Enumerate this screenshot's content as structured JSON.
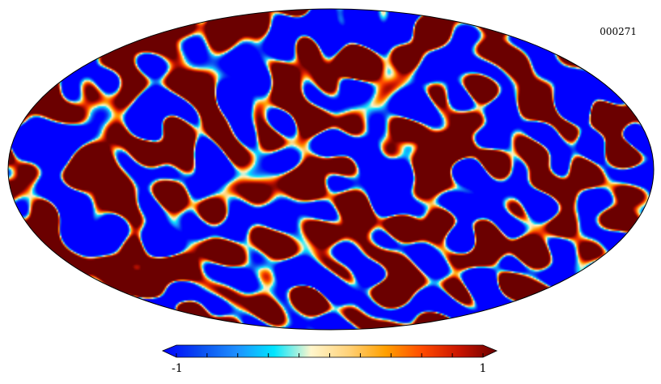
{
  "map": {
    "id_label": "000271",
    "projection": "mollweide",
    "colormap": [
      "#0000ff",
      "#0a4cf0",
      "#1e90ff",
      "#00e5ff",
      "#fff6cc",
      "#ffd27a",
      "#ffa000",
      "#ff4a00",
      "#c81400",
      "#6b0000"
    ],
    "outline_color": "#000000"
  },
  "colorbar": {
    "min_label": "-1",
    "max_label": "1",
    "min_value": -1,
    "max_value": 1,
    "tick_count": 11
  }
}
